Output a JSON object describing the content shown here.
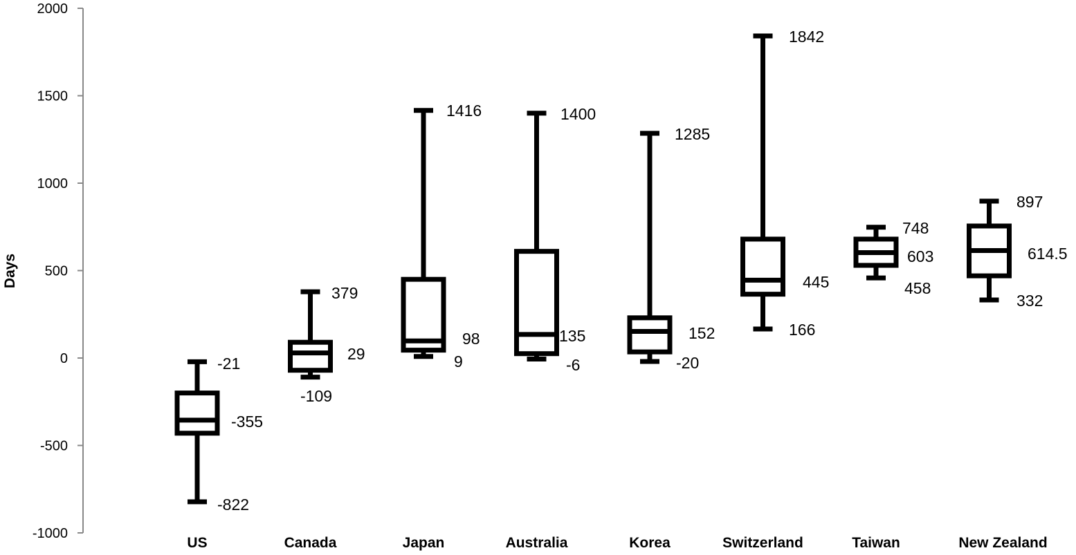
{
  "chart_data": {
    "type": "boxplot",
    "ylabel": "Days",
    "xlabel": "",
    "ylim": [
      -1000,
      2000
    ],
    "yticks": [
      -1000,
      -500,
      0,
      500,
      1000,
      1500,
      2000
    ],
    "categories": [
      "US",
      "Canada",
      "Japan",
      "Australia",
      "Korea",
      "Switzerland",
      "Taiwan",
      "New Zealand"
    ],
    "boxes": [
      {
        "category": "US",
        "min": -822,
        "q1": -430,
        "median": -355,
        "q3": -200,
        "max": -21,
        "labels": {
          "max": "-21",
          "median": "-355",
          "min": "-822"
        }
      },
      {
        "category": "Canada",
        "min": -109,
        "q1": -70,
        "median": 29,
        "q3": 90,
        "max": 379,
        "labels": {
          "max": "379",
          "median": "29",
          "min": "-109"
        }
      },
      {
        "category": "Japan",
        "min": 9,
        "q1": 45,
        "median": 98,
        "q3": 450,
        "max": 1416,
        "labels": {
          "max": "1416",
          "median": "98",
          "min": "9"
        }
      },
      {
        "category": "Australia",
        "min": -6,
        "q1": 25,
        "median": 135,
        "q3": 610,
        "max": 1400,
        "labels": {
          "max": "1400",
          "median": "135",
          "min": "-6"
        }
      },
      {
        "category": "Korea",
        "min": -20,
        "q1": 35,
        "median": 152,
        "q3": 230,
        "max": 1285,
        "labels": {
          "max": "1285",
          "median": "152",
          "min": "-20"
        }
      },
      {
        "category": "Switzerland",
        "min": 166,
        "q1": 365,
        "median": 445,
        "q3": 680,
        "max": 1842,
        "labels": {
          "max": "1842",
          "median": "445",
          "min": "166"
        }
      },
      {
        "category": "Taiwan",
        "min": 458,
        "q1": 530,
        "median": 603,
        "q3": 680,
        "max": 748,
        "labels": {
          "max": "748",
          "median": "603",
          "min": "458"
        }
      },
      {
        "category": "New Zealand",
        "min": 332,
        "q1": 470,
        "median": 614.5,
        "q3": 755,
        "max": 897,
        "labels": {
          "max": "897",
          "median": "614.5",
          "min": "332"
        }
      }
    ],
    "grid": false,
    "legend": "none"
  }
}
